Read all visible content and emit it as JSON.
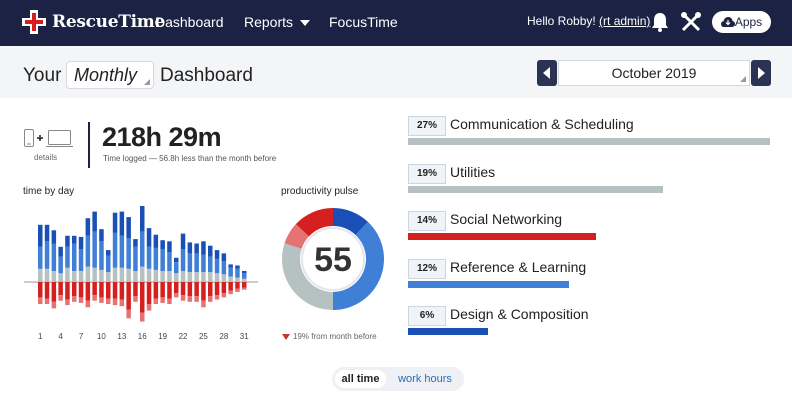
{
  "nav": {
    "brand": "RescueTime",
    "links": [
      "Dashboard",
      "Reports",
      "FocusTime"
    ],
    "greeting": "Hello Robby!",
    "admin_link": "(rt admin)",
    "apps_label": "Apps",
    "icons": [
      "rescuetime-logo-icon",
      "chevron-down-icon",
      "bell-icon",
      "tools-icon",
      "cloud-download-icon"
    ]
  },
  "header": {
    "prefix": "Your",
    "period": "Monthly",
    "suffix": "Dashboard",
    "month": "October 2019"
  },
  "summary": {
    "details_label": "details",
    "time_logged": "218h 29m",
    "time_sub": "Time logged — 56.8h less than the month before"
  },
  "time_by_day": {
    "label": "time by day",
    "x_ticks": [
      "1",
      "4",
      "7",
      "10",
      "13",
      "16",
      "19",
      "22",
      "25",
      "28",
      "31"
    ]
  },
  "pulse": {
    "label": "productivity pulse",
    "score": "55",
    "footnote": "19% from month before"
  },
  "categories": [
    {
      "pct": "27%",
      "name": "Communication & Scheduling",
      "value": 27,
      "color": "#b6c2c1"
    },
    {
      "pct": "19%",
      "name": "Utilities",
      "value": 19,
      "color": "#b6c2c1"
    },
    {
      "pct": "14%",
      "name": "Social Networking",
      "value": 14,
      "color": "#d6201f"
    },
    {
      "pct": "12%",
      "name": "Reference & Learning",
      "value": 12,
      "color": "#3f7fd6"
    },
    {
      "pct": "6%",
      "name": "Design & Composition",
      "value": 6,
      "color": "#1a4fb5"
    }
  ],
  "toggle": {
    "all": "all time",
    "work": "work hours"
  },
  "chart_data": [
    {
      "type": "bar",
      "title": "time by day",
      "categories": [
        1,
        2,
        3,
        4,
        5,
        6,
        7,
        8,
        9,
        10,
        11,
        12,
        13,
        14,
        15,
        16,
        17,
        18,
        19,
        20,
        21,
        22,
        23,
        24,
        25,
        26,
        27,
        28,
        29,
        30,
        31
      ],
      "series": [
        {
          "values": [
            2.0,
            1.5,
            1.2,
            0.9,
            1.0,
            0.7,
            1.1,
            1.6,
            1.8,
            1.1,
            0.5,
            1.8,
            2.2,
            1.9,
            0.7,
            2.4,
            1.7,
            1.2,
            0.8,
            1.0,
            0.4,
            1.4,
            1.0,
            0.9,
            1.2,
            1.0,
            0.8,
            0.7,
            0.3,
            0.3,
            0.2
          ]
        },
        {
          "values": [
            2.0,
            2.5,
            2.5,
            1.5,
            1.9,
            2.5,
            2.0,
            2.8,
            3.3,
            2.6,
            1.5,
            3.2,
            2.9,
            2.8,
            2.2,
            3.2,
            2.0,
            2.0,
            2.0,
            1.7,
            1.0,
            2.0,
            1.7,
            1.7,
            1.6,
            1.4,
            1.3,
            1.2,
            0.8,
            0.8,
            0.5
          ]
        },
        {
          "values": [
            1.2,
            1.2,
            1.0,
            0.8,
            1.3,
            1.0,
            1.0,
            1.4,
            1.3,
            1.1,
            0.9,
            1.3,
            1.3,
            1.2,
            1.0,
            1.4,
            1.2,
            1.1,
            1.0,
            1.0,
            0.8,
            1.0,
            0.9,
            0.9,
            0.9,
            0.9,
            0.8,
            0.7,
            0.5,
            0.4,
            0.3
          ]
        },
        {
          "values": [
            1.4,
            1.5,
            1.8,
            1.2,
            1.6,
            1.3,
            1.4,
            1.7,
            1.2,
            1.4,
            1.5,
            1.5,
            1.6,
            2.5,
            1.3,
            2.8,
            2.0,
            1.5,
            1.4,
            1.5,
            1.0,
            1.2,
            1.3,
            1.3,
            1.7,
            1.3,
            1.2,
            1.0,
            0.8,
            0.6,
            0.5
          ]
        },
        {
          "values": [
            0.6,
            0.5,
            0.6,
            0.5,
            0.5,
            0.5,
            0.5,
            0.6,
            0.5,
            0.5,
            0.5,
            0.6,
            0.6,
            0.8,
            0.5,
            0.8,
            0.6,
            0.5,
            0.5,
            0.5,
            0.4,
            0.5,
            0.5,
            0.5,
            0.6,
            0.5,
            0.4,
            0.4,
            0.3,
            0.3,
            0.2
          ]
        }
      ],
      "colors": [
        "#1a4fb5",
        "#3f7fd6",
        "#b6c2c1",
        "#d6201f",
        "#e57373"
      ]
    },
    {
      "type": "pie",
      "title": "productivity pulse",
      "values": [
        12,
        38,
        30,
        7,
        13
      ],
      "colors": [
        "#1a4fb5",
        "#3f7fd6",
        "#b6c2c1",
        "#e57373",
        "#d6201f"
      ]
    }
  ]
}
